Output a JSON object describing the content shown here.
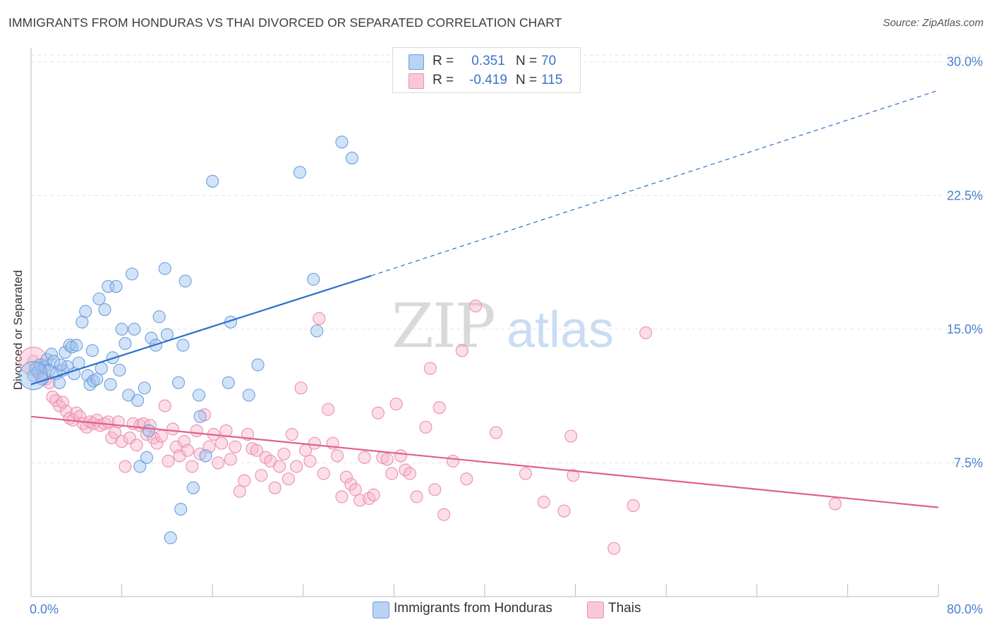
{
  "title": "IMMIGRANTS FROM HONDURAS VS THAI DIVORCED OR SEPARATED CORRELATION CHART",
  "source": "Source: ZipAtlas.com",
  "watermark": {
    "zip": "ZIP",
    "atlas": "atlas"
  },
  "colors": {
    "honduras_fill": "#9ec2ee",
    "honduras_stroke": "#6a9fdf",
    "honduras_line": "#2a6fcc",
    "thai_fill": "#f6b6cb",
    "thai_stroke": "#eb8fb0",
    "thai_line": "#e0608f",
    "tick_text": "#4a7fd0",
    "grid": "#e3e3e3"
  },
  "legend_top": {
    "rows": [
      {
        "r_label": "R =",
        "r_value": "0.351",
        "n_label": "N =",
        "n_value": "70"
      },
      {
        "r_label": "R =",
        "r_value": "-0.419",
        "n_label": "N =",
        "n_value": "115"
      }
    ]
  },
  "legend_bottom": {
    "items": [
      {
        "label": "Immigrants from Honduras"
      },
      {
        "label": "Thais"
      }
    ]
  },
  "chart_data": {
    "type": "scatter",
    "title": "IMMIGRANTS FROM HONDURAS VS THAI DIVORCED OR SEPARATED CORRELATION CHART",
    "xlabel": "",
    "ylabel": "Divorced or Separated",
    "xlim": [
      0,
      80
    ],
    "ylim": [
      0,
      30.7
    ],
    "x_tick_labels": [
      {
        "value": 0,
        "label": "0.0%"
      },
      {
        "value": 80,
        "label": "80.0%"
      }
    ],
    "y_ticks": [
      {
        "value": 7.5,
        "label": "7.5%"
      },
      {
        "value": 15,
        "label": "15.0%"
      },
      {
        "value": 22.5,
        "label": "22.5%"
      },
      {
        "value": 30,
        "label": "30.0%"
      }
    ],
    "grid": true,
    "legend_position": "top-center",
    "series": [
      {
        "name": "Immigrants from Honduras",
        "r": 0.351,
        "n": 70,
        "trend": {
          "x0": 0,
          "y0": 11.9,
          "x1": 30.0,
          "y1": 18.0,
          "dash_to_x": 80,
          "dash_to_y": 28.4
        },
        "points": [
          [
            0.2,
            12.4
          ],
          [
            0.4,
            12.8
          ],
          [
            0.6,
            12.6
          ],
          [
            0.8,
            13.0
          ],
          [
            1.0,
            12.2
          ],
          [
            1.2,
            12.9
          ],
          [
            1.4,
            13.3
          ],
          [
            1.6,
            12.7
          ],
          [
            1.8,
            13.6
          ],
          [
            2.0,
            13.2
          ],
          [
            2.2,
            12.5
          ],
          [
            2.5,
            12.0
          ],
          [
            2.8,
            12.7
          ],
          [
            3.0,
            13.7
          ],
          [
            3.2,
            12.9
          ],
          [
            3.4,
            14.1
          ],
          [
            3.6,
            14.0
          ],
          [
            3.8,
            12.5
          ],
          [
            4.0,
            14.1
          ],
          [
            4.2,
            13.1
          ],
          [
            4.5,
            15.4
          ],
          [
            4.8,
            16.0
          ],
          [
            5.0,
            12.4
          ],
          [
            5.2,
            11.9
          ],
          [
            5.5,
            12.1
          ],
          [
            5.8,
            12.2
          ],
          [
            6.0,
            16.7
          ],
          [
            6.2,
            12.8
          ],
          [
            6.5,
            16.1
          ],
          [
            6.8,
            17.4
          ],
          [
            7.0,
            11.9
          ],
          [
            7.2,
            13.4
          ],
          [
            7.5,
            17.4
          ],
          [
            7.8,
            12.7
          ],
          [
            8.0,
            15.0
          ],
          [
            8.3,
            14.2
          ],
          [
            8.6,
            11.3
          ],
          [
            8.9,
            18.1
          ],
          [
            9.1,
            15.0
          ],
          [
            9.4,
            11.0
          ],
          [
            9.6,
            7.3
          ],
          [
            10.0,
            11.7
          ],
          [
            10.2,
            7.8
          ],
          [
            10.4,
            9.3
          ],
          [
            10.6,
            14.5
          ],
          [
            11.0,
            14.1
          ],
          [
            11.3,
            15.7
          ],
          [
            11.8,
            18.4
          ],
          [
            12.0,
            14.7
          ],
          [
            12.3,
            3.3
          ],
          [
            13.2,
            4.9
          ],
          [
            13.4,
            14.1
          ],
          [
            13.6,
            17.7
          ],
          [
            14.3,
            6.1
          ],
          [
            14.8,
            11.3
          ],
          [
            14.9,
            10.1
          ],
          [
            15.4,
            7.9
          ],
          [
            16.0,
            23.3
          ],
          [
            17.4,
            12.0
          ],
          [
            17.6,
            15.4
          ],
          [
            19.2,
            11.3
          ],
          [
            23.7,
            23.8
          ],
          [
            24.9,
            17.8
          ],
          [
            25.2,
            14.9
          ],
          [
            27.4,
            25.5
          ],
          [
            28.3,
            24.6
          ],
          [
            20.0,
            13.0
          ],
          [
            13.0,
            12.0
          ],
          [
            5.4,
            13.8
          ],
          [
            2.6,
            13.0
          ]
        ]
      },
      {
        "name": "Thais",
        "r": -0.419,
        "n": 115,
        "trend": {
          "x0": 0,
          "y0": 10.1,
          "x1": 80,
          "y1": 5.0
        },
        "points": [
          [
            0.2,
            13.2
          ],
          [
            0.5,
            12.8
          ],
          [
            0.8,
            12.4
          ],
          [
            1.1,
            13.0
          ],
          [
            1.3,
            12.2
          ],
          [
            1.6,
            12.0
          ],
          [
            1.9,
            11.2
          ],
          [
            2.2,
            11.0
          ],
          [
            2.5,
            10.7
          ],
          [
            2.8,
            10.9
          ],
          [
            3.1,
            10.4
          ],
          [
            3.4,
            10.0
          ],
          [
            3.7,
            9.9
          ],
          [
            4.0,
            10.3
          ],
          [
            4.3,
            10.1
          ],
          [
            4.6,
            9.7
          ],
          [
            4.9,
            9.5
          ],
          [
            5.2,
            9.8
          ],
          [
            5.5,
            9.7
          ],
          [
            5.8,
            9.9
          ],
          [
            6.1,
            9.6
          ],
          [
            6.5,
            9.7
          ],
          [
            6.8,
            9.8
          ],
          [
            7.1,
            8.9
          ],
          [
            7.4,
            9.2
          ],
          [
            7.7,
            9.8
          ],
          [
            8.0,
            8.7
          ],
          [
            8.3,
            7.3
          ],
          [
            8.7,
            8.9
          ],
          [
            9.0,
            9.7
          ],
          [
            9.3,
            8.5
          ],
          [
            9.6,
            9.6
          ],
          [
            9.9,
            9.7
          ],
          [
            10.2,
            9.1
          ],
          [
            10.5,
            9.6
          ],
          [
            10.8,
            8.9
          ],
          [
            11.1,
            8.6
          ],
          [
            11.5,
            9.0
          ],
          [
            11.8,
            10.7
          ],
          [
            12.1,
            7.6
          ],
          [
            12.5,
            9.4
          ],
          [
            12.8,
            8.4
          ],
          [
            13.1,
            7.9
          ],
          [
            13.5,
            8.7
          ],
          [
            13.8,
            8.2
          ],
          [
            14.2,
            7.3
          ],
          [
            14.6,
            9.3
          ],
          [
            14.9,
            8.0
          ],
          [
            15.3,
            10.2
          ],
          [
            15.7,
            8.4
          ],
          [
            16.1,
            9.1
          ],
          [
            16.5,
            7.5
          ],
          [
            16.8,
            8.6
          ],
          [
            17.2,
            9.3
          ],
          [
            17.6,
            7.7
          ],
          [
            18.0,
            8.4
          ],
          [
            18.4,
            5.9
          ],
          [
            18.8,
            6.5
          ],
          [
            19.1,
            9.1
          ],
          [
            19.5,
            8.3
          ],
          [
            19.9,
            8.2
          ],
          [
            20.3,
            6.8
          ],
          [
            20.7,
            7.8
          ],
          [
            21.1,
            7.6
          ],
          [
            21.5,
            6.1
          ],
          [
            21.9,
            7.3
          ],
          [
            22.3,
            8.0
          ],
          [
            22.7,
            6.6
          ],
          [
            23.0,
            9.1
          ],
          [
            23.4,
            7.3
          ],
          [
            23.8,
            11.7
          ],
          [
            24.2,
            8.2
          ],
          [
            24.6,
            7.6
          ],
          [
            25.0,
            8.6
          ],
          [
            25.4,
            15.6
          ],
          [
            25.8,
            6.9
          ],
          [
            26.2,
            10.5
          ],
          [
            26.6,
            8.6
          ],
          [
            27.0,
            7.9
          ],
          [
            27.4,
            5.6
          ],
          [
            27.8,
            6.7
          ],
          [
            28.2,
            6.3
          ],
          [
            28.6,
            6.0
          ],
          [
            29.0,
            5.4
          ],
          [
            29.4,
            7.8
          ],
          [
            29.8,
            5.5
          ],
          [
            30.2,
            5.7
          ],
          [
            30.6,
            10.3
          ],
          [
            31.0,
            7.8
          ],
          [
            31.4,
            7.7
          ],
          [
            31.8,
            6.9
          ],
          [
            32.2,
            10.8
          ],
          [
            32.6,
            7.9
          ],
          [
            33.0,
            7.1
          ],
          [
            33.4,
            6.9
          ],
          [
            34.0,
            5.6
          ],
          [
            34.8,
            9.5
          ],
          [
            35.2,
            12.8
          ],
          [
            35.6,
            6.0
          ],
          [
            36.0,
            10.6
          ],
          [
            36.4,
            4.6
          ],
          [
            37.2,
            7.6
          ],
          [
            38.0,
            13.8
          ],
          [
            38.4,
            6.6
          ],
          [
            39.2,
            16.3
          ],
          [
            41.0,
            9.2
          ],
          [
            43.6,
            6.9
          ],
          [
            45.2,
            5.3
          ],
          [
            47.0,
            4.8
          ],
          [
            47.6,
            9.0
          ],
          [
            47.8,
            6.8
          ],
          [
            51.4,
            2.7
          ],
          [
            53.1,
            5.1
          ],
          [
            54.2,
            14.8
          ],
          [
            70.9,
            5.2
          ]
        ]
      }
    ]
  }
}
